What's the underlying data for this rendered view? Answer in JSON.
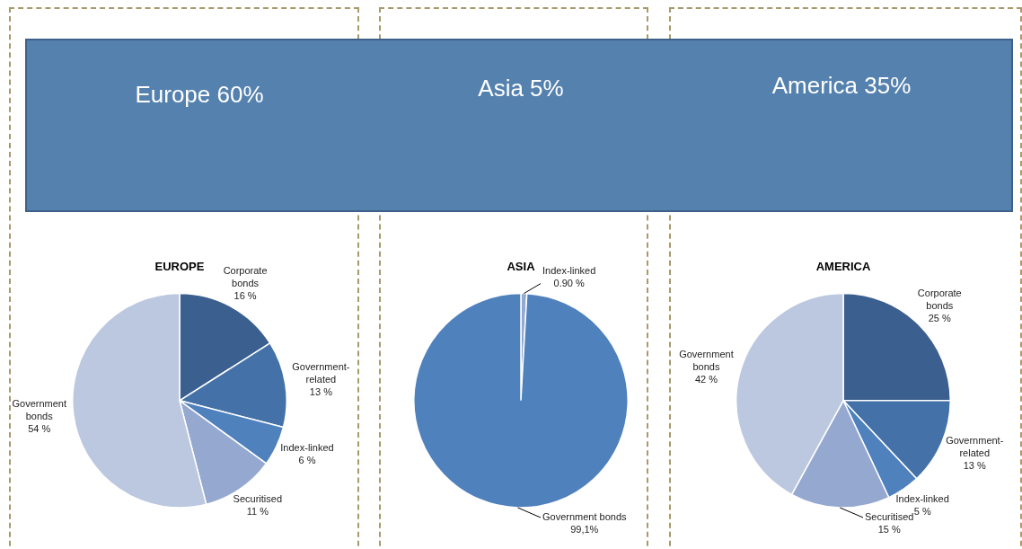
{
  "chart_data": [
    {
      "type": "other",
      "annotations": [
        "Europe 60%",
        "Asia 5%",
        "America 35%"
      ]
    },
    {
      "type": "pie",
      "title": "EUROPE",
      "categories": [
        "Corporate bonds",
        "Government-related",
        "Index-linked",
        "Securitised",
        "Government bonds"
      ],
      "values": [
        16,
        13,
        6,
        11,
        54
      ],
      "value_labels": [
        "16 %",
        "13 %",
        "6 %",
        "11 %",
        "54 %"
      ],
      "colors": [
        "#3b5f8e",
        "#4472a8",
        "#4f81bd",
        "#95a9d0",
        "#bcc8e0"
      ]
    },
    {
      "type": "pie",
      "title": "ASIA",
      "categories": [
        "Index-linked",
        "Government bonds"
      ],
      "values": [
        0.9,
        99.1
      ],
      "value_labels": [
        "0.90 %",
        "99,1%"
      ],
      "colors": [
        "#95a9d0",
        "#4f81bd"
      ]
    },
    {
      "type": "pie",
      "title": "AMERICA",
      "categories": [
        "Corporate bonds",
        "Government-related",
        "Index-linked",
        "Securitised",
        "Government bonds"
      ],
      "values": [
        25,
        13,
        5,
        15,
        42
      ],
      "value_labels": [
        "25 %",
        "13 %",
        "5 %",
        "15 %",
        "42 %"
      ],
      "colors": [
        "#3b5f8e",
        "#4472a8",
        "#4f81bd",
        "#95a9d0",
        "#bcc8e0"
      ]
    }
  ]
}
